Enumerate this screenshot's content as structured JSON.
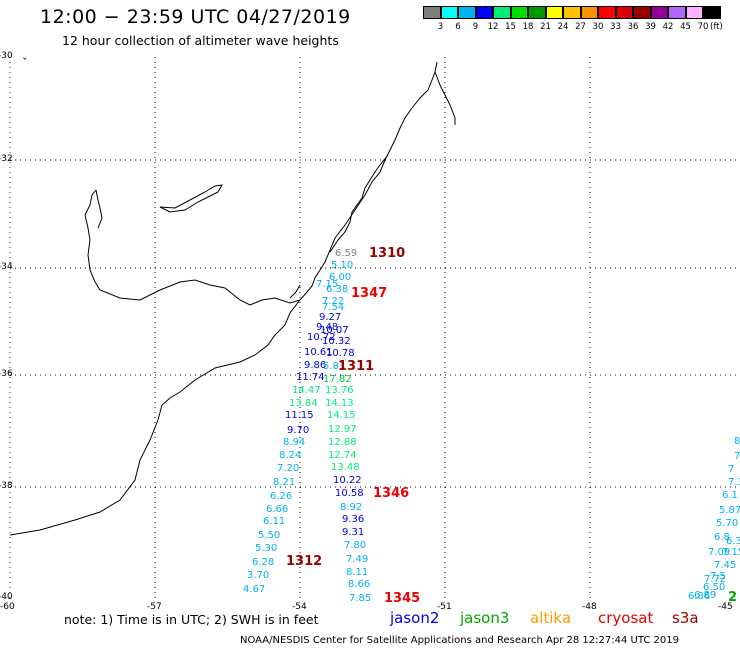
{
  "title": "12:00 − 23:59 UTC 04/27/2019",
  "subtitle": "12 hour collection of altimeter wave heights",
  "colorbar": {
    "colors": [
      "#7f7f7f",
      "#00ffff",
      "#00b2ee",
      "#0000ff",
      "#00ee76",
      "#00dd00",
      "#009900",
      "#ffff00",
      "#ffc000",
      "#ff9000",
      "#ff0000",
      "#dd0000",
      "#990000",
      "#990099",
      "#b266ff",
      "#ffb2ff",
      "#000000"
    ],
    "ticks": [
      "3",
      "6",
      "9",
      "12",
      "15",
      "18",
      "21",
      "24",
      "27",
      "30",
      "33",
      "36",
      "39",
      "42",
      "45",
      "70"
    ],
    "unit": "(ft)"
  },
  "axes": {
    "y_labels": [
      "-30",
      "-32",
      "-34",
      "-36",
      "-38",
      "-40"
    ],
    "x_labels": [
      "-60",
      "-57",
      "-54",
      "-51",
      "-48",
      "-45"
    ]
  },
  "note": "note:  1) Time is in UTC; 2) SWH is in feet",
  "legend": [
    {
      "label": "jason2",
      "color": "#0000dd"
    },
    {
      "label": "jason3",
      "color": "#00aa00"
    },
    {
      "label": "altika",
      "color": "#ff9900"
    },
    {
      "label": "cryosat",
      "color": "#dd0000"
    },
    {
      "label": "s3a",
      "color": "#990000"
    }
  ],
  "credit": "NOAA/NESDIS Center for Satellite Applications and Research    Apr 28 12:27:44 UTC 2019",
  "pass_labels": [
    {
      "text": "1310",
      "color": "#990000"
    },
    {
      "text": "1347",
      "color": "#ee0000"
    },
    {
      "text": "1311",
      "color": "#990000"
    },
    {
      "text": "1346",
      "color": "#ee0000"
    },
    {
      "text": "1312",
      "color": "#990000"
    },
    {
      "text": "1345",
      "color": "#ee0000"
    },
    {
      "text": "2",
      "color": "#00aa00"
    }
  ],
  "track_values": [
    {
      "t": "6.59",
      "c": "#7f7f7f"
    },
    {
      "t": "5.10",
      "c": "#00b2ee"
    },
    {
      "t": "6.00",
      "c": "#00b2ee"
    },
    {
      "t": "7.15",
      "c": "#00b2ee"
    },
    {
      "t": "6.38",
      "c": "#00b2ee"
    },
    {
      "t": "7.22",
      "c": "#00b2ee"
    },
    {
      "t": "7.54",
      "c": "#00b2ee"
    },
    {
      "t": "9.27",
      "c": "#0000dd"
    },
    {
      "t": "9.48",
      "c": "#0000dd"
    },
    {
      "t": "10.07",
      "c": "#0000dd"
    },
    {
      "t": "10.72",
      "c": "#0000dd"
    },
    {
      "t": "10.32",
      "c": "#0000dd"
    },
    {
      "t": "10.61",
      "c": "#0000dd"
    },
    {
      "t": "10.78",
      "c": "#0000dd"
    },
    {
      "t": "9.86",
      "c": "#0000dd"
    },
    {
      "t": "5.83",
      "c": "#00b2ee"
    },
    {
      "t": "11.74",
      "c": "#0000dd"
    },
    {
      "t": "17.82",
      "c": "#00cc44"
    },
    {
      "t": "14.47",
      "c": "#00ee76"
    },
    {
      "t": "13.76",
      "c": "#00ee76"
    },
    {
      "t": "13.84",
      "c": "#00ee76"
    },
    {
      "t": "14.13",
      "c": "#00ee76"
    },
    {
      "t": "11.15",
      "c": "#0000dd"
    },
    {
      "t": "14.15",
      "c": "#00ee76"
    },
    {
      "t": "9.70",
      "c": "#0000dd"
    },
    {
      "t": "12.97",
      "c": "#00ee76"
    },
    {
      "t": "8.94",
      "c": "#00b2ee"
    },
    {
      "t": "12.88",
      "c": "#00ee76"
    },
    {
      "t": "8.24",
      "c": "#00b2ee"
    },
    {
      "t": "12.74",
      "c": "#00ee76"
    },
    {
      "t": "7.20",
      "c": "#00b2ee"
    },
    {
      "t": "13.48",
      "c": "#00ee76"
    },
    {
      "t": "8.21",
      "c": "#00b2ee"
    },
    {
      "t": "10.22",
      "c": "#0000dd"
    },
    {
      "t": "6.26",
      "c": "#00b2ee"
    },
    {
      "t": "10.58",
      "c": "#0000dd"
    },
    {
      "t": "6.66",
      "c": "#00b2ee"
    },
    {
      "t": "8.92",
      "c": "#00b2ee"
    },
    {
      "t": "6.11",
      "c": "#00b2ee"
    },
    {
      "t": "9.36",
      "c": "#0000dd"
    },
    {
      "t": "5.50",
      "c": "#00b2ee"
    },
    {
      "t": "9.31",
      "c": "#0000dd"
    },
    {
      "t": "5.30",
      "c": "#00b2ee"
    },
    {
      "t": "7.80",
      "c": "#00b2ee"
    },
    {
      "t": "6.28",
      "c": "#00b2ee"
    },
    {
      "t": "7.49",
      "c": "#00b2ee"
    },
    {
      "t": "3.70",
      "c": "#00b2ee"
    },
    {
      "t": "8.11",
      "c": "#00b2ee"
    },
    {
      "t": "8.66",
      "c": "#00b2ee"
    },
    {
      "t": "4.67",
      "c": "#00b2ee"
    },
    {
      "t": "7.85",
      "c": "#00b2ee"
    },
    {
      "t": "8",
      "c": "#00b2ee"
    },
    {
      "t": "7",
      "c": "#00b2ee"
    },
    {
      "t": "7",
      "c": "#00b2ee"
    },
    {
      "t": "7.3",
      "c": "#00b2ee"
    },
    {
      "t": "6.1",
      "c": "#00b2ee"
    },
    {
      "t": "5.87",
      "c": "#00b2ee"
    },
    {
      "t": "5.70",
      "c": "#00b2ee"
    },
    {
      "t": "6.3",
      "c": "#00b2ee"
    },
    {
      "t": "6.8",
      "c": "#00b2ee"
    },
    {
      "t": "7.09",
      "c": "#00b2ee"
    },
    {
      "t": "7.15",
      "c": "#00b2ee"
    },
    {
      "t": "7.45",
      "c": "#00b2ee"
    },
    {
      "t": "7.72",
      "c": "#00b2ee"
    },
    {
      "t": "7.5",
      "c": "#00b2ee"
    },
    {
      "t": "6.50",
      "c": "#00b2ee"
    },
    {
      "t": "6.89",
      "c": "#00b2ee"
    },
    {
      "t": "6.86",
      "c": "#00b2ee"
    }
  ]
}
